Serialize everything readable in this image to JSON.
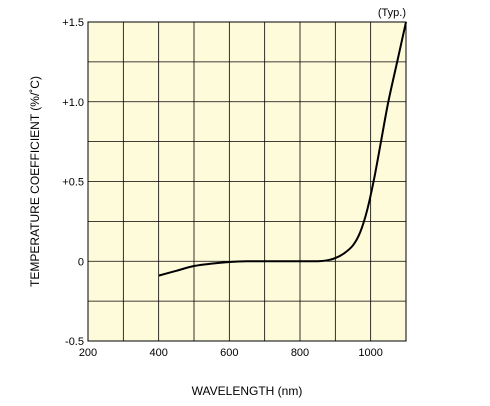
{
  "chart_data": {
    "type": "line",
    "title": "",
    "annotation": "(Typ.)",
    "xlabel": "WAVELENGTH (nm)",
    "ylabel": "TEMPERATURE COEFFICIENT (%/˚C)",
    "xlim": [
      200,
      1100
    ],
    "ylim": [
      -0.5,
      1.5
    ],
    "x_ticks": [
      200,
      400,
      600,
      800,
      1000
    ],
    "x_tick_labels": [
      "200",
      "400",
      "600",
      "800",
      "1000"
    ],
    "y_ticks": [
      -0.5,
      0,
      0.5,
      1.0,
      1.5
    ],
    "y_tick_labels": [
      "-0.5",
      "0",
      "+0.5",
      "+1.0",
      "+1.5"
    ],
    "grid": true,
    "colors": {
      "plot_background": "#fefbdb",
      "line": "#000000",
      "grid": "#000000"
    },
    "series": [
      {
        "x": [
          400,
          450,
          500,
          550,
          600,
          650,
          700,
          750,
          800,
          850,
          875,
          900,
          925,
          950,
          970,
          990,
          1010,
          1030,
          1050,
          1075,
          1100
        ],
        "y": [
          -0.09,
          -0.06,
          -0.03,
          -0.015,
          -0.005,
          0.0,
          0.0,
          0.0,
          0.0,
          0.0,
          0.005,
          0.02,
          0.05,
          0.1,
          0.18,
          0.32,
          0.52,
          0.76,
          1.0,
          1.25,
          1.5
        ]
      }
    ]
  }
}
